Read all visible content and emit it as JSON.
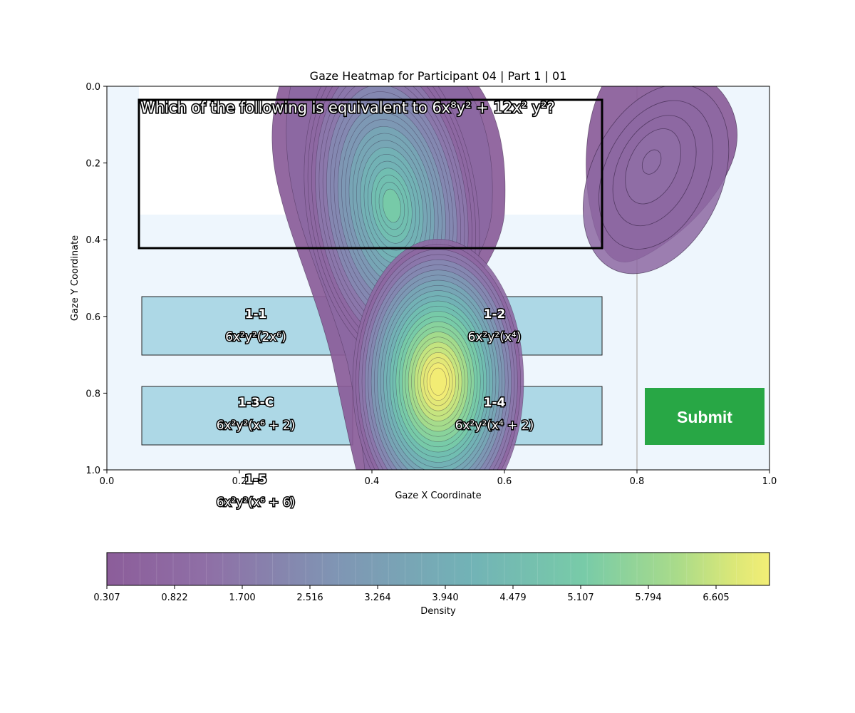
{
  "chart_data": {
    "type": "heatmap",
    "title": "Gaze Heatmap for Participant 04 | Part 1 | 01",
    "xlabel": "Gaze X Coordinate",
    "ylabel": "Gaze Y Coordinate",
    "xlim": [
      0.0,
      1.0
    ],
    "ylim": [
      1.0,
      0.0
    ],
    "y_inverted": true,
    "x_ticks": [
      "0.0",
      "0.2",
      "0.4",
      "0.6",
      "0.8",
      "1.0"
    ],
    "y_ticks": [
      "0.0",
      "0.2",
      "0.4",
      "0.6",
      "0.8",
      "1.0"
    ],
    "colormap": "viridis",
    "colorbar": {
      "label": "Density",
      "ticks": [
        "0.307",
        "0.822",
        "1.700",
        "2.516",
        "3.264",
        "3.940",
        "4.479",
        "5.107",
        "5.794",
        "6.605"
      ],
      "min": 0.307,
      "max": 7.0
    },
    "density_peaks": [
      {
        "x": 0.43,
        "y": 0.33,
        "value": 4.8
      },
      {
        "x": 0.5,
        "y": 0.77,
        "value": 7.0
      },
      {
        "x": 0.82,
        "y": 0.19,
        "value": 0.9
      }
    ],
    "question": {
      "text": "Which of the following is equivalent to 6x⁸y² + 12x² y²?",
      "region": {
        "x0": 0.048,
        "x1": 0.748,
        "y0": 0.035,
        "y1": 0.423
      }
    },
    "answer_options": [
      {
        "label": "1-1",
        "text": "6x²y²(2x⁶)",
        "region": {
          "x0": 0.053,
          "x1": 0.371,
          "y0": 0.55,
          "y1": 0.7
        }
      },
      {
        "label": "1-2",
        "text": "6x²y²(x⁴)",
        "region": {
          "x0": 0.429,
          "x1": 0.748,
          "y0": 0.55,
          "y1": 0.7
        }
      },
      {
        "label": "1-3-C",
        "text": "6x²y²(x⁶ + 2)",
        "region": {
          "x0": 0.053,
          "x1": 0.371,
          "y0": 0.78,
          "y1": 0.93
        }
      },
      {
        "label": "1-4",
        "text": "6x²y²(x⁴ + 2)",
        "region": {
          "x0": 0.429,
          "x1": 0.748,
          "y0": 0.78,
          "y1": 0.93
        }
      },
      {
        "label": "1-5",
        "text": "6x²y²(x⁶ + 6)",
        "region": {
          "x0": 0.053,
          "x1": 0.371,
          "y0": 1.0,
          "y1": 1.15
        }
      }
    ],
    "submit": {
      "label": "Submit",
      "color": "#28a745",
      "region": {
        "x0": 0.813,
        "x1": 0.992,
        "y0": 0.78,
        "y1": 0.93
      }
    },
    "colors": {
      "plot_background": "#eef6fd",
      "aoi_fill": "#add8e6",
      "question_fill": "#ffffff"
    }
  }
}
